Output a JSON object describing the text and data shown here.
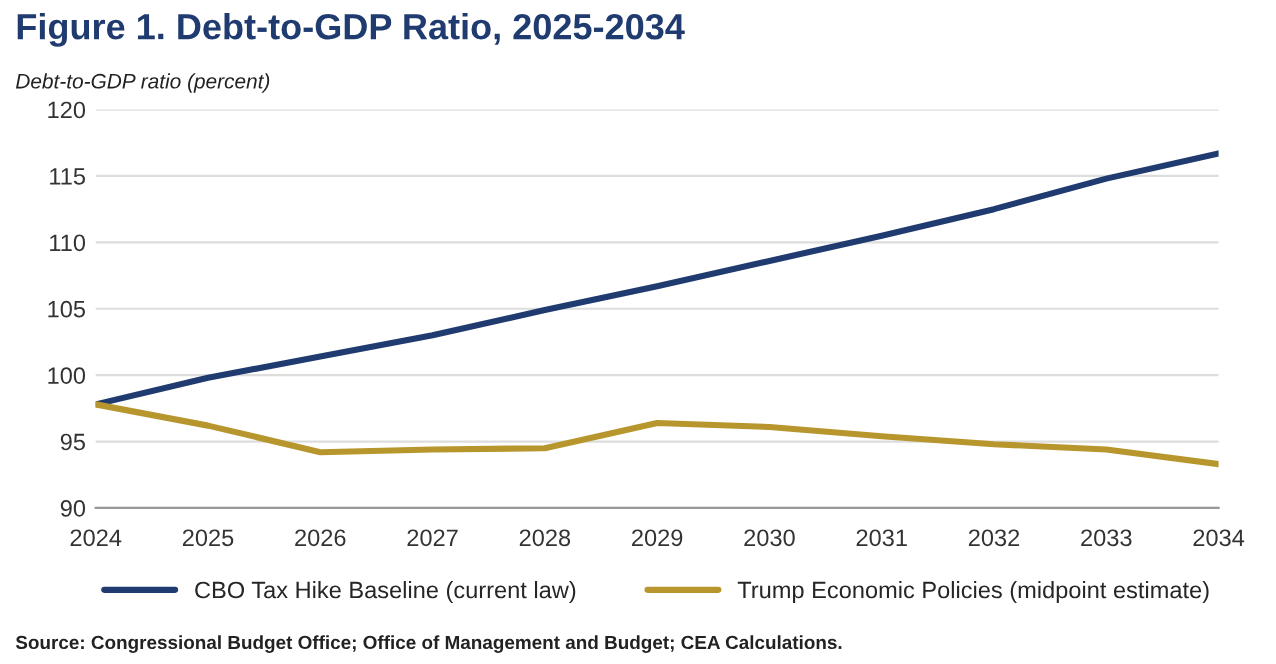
{
  "chart_data": {
    "type": "line",
    "title": "Figure 1. Debt-to-GDP Ratio, 2025-2034",
    "ylabel": "Debt-to-GDP ratio (percent)",
    "x": [
      2024,
      2025,
      2026,
      2027,
      2028,
      2029,
      2030,
      2031,
      2032,
      2033,
      2034
    ],
    "series": [
      {
        "name": "CBO Tax Hike Baseline (current law)",
        "color": "#1f3b6f",
        "values": [
          97.8,
          99.8,
          101.4,
          103.0,
          104.9,
          106.7,
          108.6,
          110.5,
          112.5,
          114.8,
          116.7
        ]
      },
      {
        "name": "Trump Economic Policies (midpoint estimate)",
        "color": "#b8962e",
        "values": [
          97.8,
          96.2,
          94.2,
          94.4,
          94.5,
          96.4,
          96.1,
          95.4,
          94.8,
          94.4,
          93.3
        ]
      }
    ],
    "xlim": [
      2024,
      2034
    ],
    "xticks": [
      2024,
      2025,
      2026,
      2027,
      2028,
      2029,
      2030,
      2031,
      2032,
      2033,
      2034
    ],
    "ylim": [
      90,
      120
    ],
    "yticks": [
      90,
      95,
      100,
      105,
      110,
      115,
      120
    ],
    "grid": "y",
    "legend": "bottom",
    "marker": "none",
    "line_style": "solid",
    "annotations": [
      "Source: Congressional Budget Office; Office of Management and Budget; CEA Calculations."
    ]
  }
}
